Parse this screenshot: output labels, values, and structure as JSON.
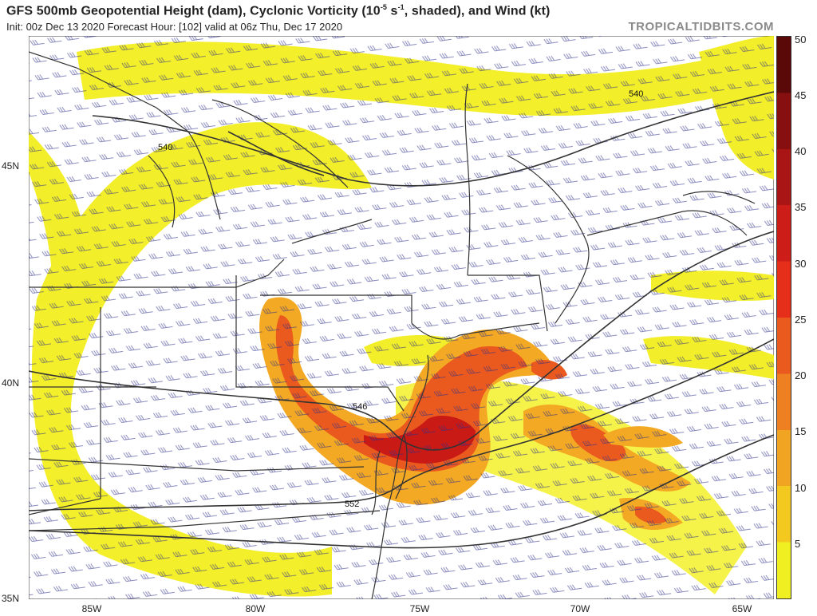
{
  "header": {
    "title_main": "GFS 500mb Geopotential Height (dam), Cyclonic Vorticity (10",
    "title_exp": "-5",
    "title_unit": " s",
    "title_exp2": "-1",
    "title_rest": ", shaded), and Wind (kt)",
    "subtitle": "Init: 00z Dec 13 2020   Forecast Hour: [102]   valid at 06z Thu, Dec 17 2020",
    "brand": "TROPICALTIDBITS.COM"
  },
  "colorbar": {
    "ticks": [
      "5",
      "10",
      "15",
      "20",
      "25",
      "30",
      "35",
      "40",
      "45",
      "50"
    ],
    "colors": [
      "#f0ef22",
      "#f3c91f",
      "#f1a322",
      "#ee8021",
      "#ea5a1e",
      "#e52f1b",
      "#cc1d18",
      "#a91514",
      "#870f10",
      "#5a0808"
    ]
  },
  "axes": {
    "lat_labels": [
      "45N",
      "40N",
      "35N"
    ],
    "lon_labels": [
      "85W",
      "80W",
      "75W",
      "70W",
      "65W"
    ]
  },
  "contours": {
    "labels": [
      "540",
      "540",
      "546",
      "552"
    ]
  }
}
